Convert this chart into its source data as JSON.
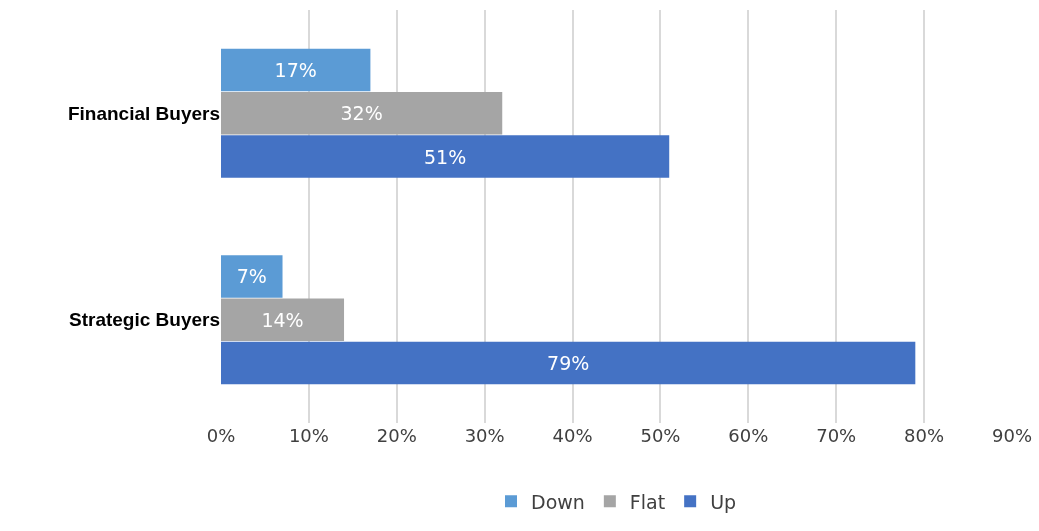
{
  "chart_data": {
    "type": "bar",
    "orientation": "horizontal",
    "categories": [
      "Financial Buyers",
      "Strategic Buyers"
    ],
    "series": [
      {
        "name": "Down",
        "color": "#5b9bd5",
        "values": [
          17,
          7
        ],
        "value_labels": [
          "17%",
          "7%"
        ]
      },
      {
        "name": "Flat",
        "color": "#a5a5a5",
        "values": [
          32,
          14
        ],
        "value_labels": [
          "32%",
          "14%"
        ]
      },
      {
        "name": "Up",
        "color": "#4472c4",
        "values": [
          51,
          79
        ],
        "value_labels": [
          "51%",
          "79%"
        ]
      }
    ],
    "xlim": [
      0,
      90
    ],
    "xticks": [
      {
        "value": 0,
        "label": "0%"
      },
      {
        "value": 10,
        "label": "10%"
      },
      {
        "value": 20,
        "label": "20%"
      },
      {
        "value": 30,
        "label": "30%"
      },
      {
        "value": 40,
        "label": "40%"
      },
      {
        "value": 50,
        "label": "50%"
      },
      {
        "value": 60,
        "label": "60%"
      },
      {
        "value": 70,
        "label": "70%"
      },
      {
        "value": 80,
        "label": "80%"
      },
      {
        "value": 90,
        "label": "90%"
      }
    ],
    "grid": "x",
    "legend": "bottom"
  }
}
